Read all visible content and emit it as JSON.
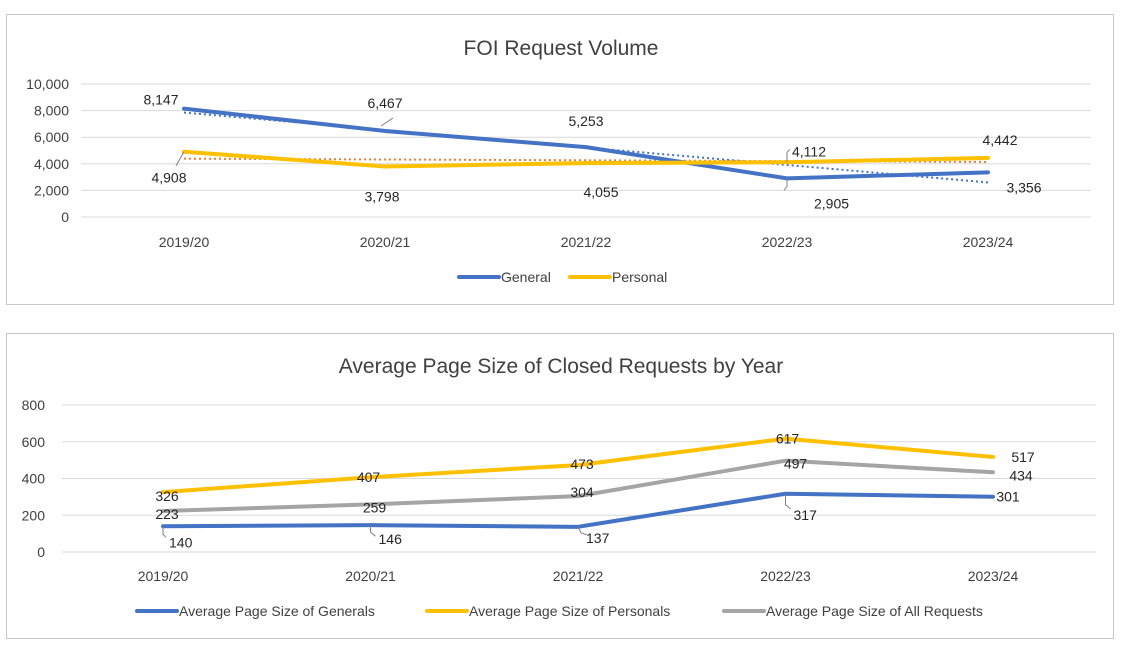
{
  "chart_data": [
    {
      "type": "line",
      "title": "FOI Request Volume",
      "categories": [
        "2019/20",
        "2020/21",
        "2021/22",
        "2022/23",
        "2023/24"
      ],
      "ylim": [
        0,
        10000
      ],
      "yticks": [
        "0",
        "2,000",
        "4,000",
        "6,000",
        "8,000",
        "10,000"
      ],
      "grid": true,
      "trendlines": true,
      "legend_position": "bottom",
      "series": [
        {
          "name": "General",
          "color": "#4472C4",
          "values": [
            8147,
            6467,
            5253,
            2905,
            3356
          ],
          "labels": [
            "8,147",
            "6,467",
            "5,253",
            "2,905",
            "3,356"
          ]
        },
        {
          "name": "Personal",
          "color": "#FFC000",
          "values": [
            4908,
            3798,
            4055,
            4112,
            4442
          ],
          "labels": [
            "4,908",
            "3,798",
            "4,055",
            "4,112",
            "4,442"
          ]
        }
      ]
    },
    {
      "type": "line",
      "title": "Average Page Size of Closed Requests by Year",
      "categories": [
        "2019/20",
        "2020/21",
        "2021/22",
        "2022/23",
        "2023/24"
      ],
      "ylim": [
        0,
        800
      ],
      "yticks": [
        "0",
        "200",
        "400",
        "600",
        "800"
      ],
      "grid": true,
      "legend_position": "bottom",
      "series": [
        {
          "name": "Average Page Size of Generals",
          "color": "#4472C4",
          "values": [
            140,
            146,
            137,
            317,
            301
          ],
          "labels": [
            "140",
            "146",
            "137",
            "317",
            "301"
          ]
        },
        {
          "name": "Average Page Size of Personals",
          "color": "#FFC000",
          "values": [
            326,
            407,
            473,
            617,
            517
          ],
          "labels": [
            "326",
            "407",
            "473",
            "617",
            "517"
          ]
        },
        {
          "name": "Average Page Size of All Requests",
          "color": "#A5A5A5",
          "values": [
            223,
            259,
            304,
            497,
            434
          ],
          "labels": [
            "223",
            "259",
            "304",
            "497",
            "434"
          ]
        }
      ]
    }
  ]
}
